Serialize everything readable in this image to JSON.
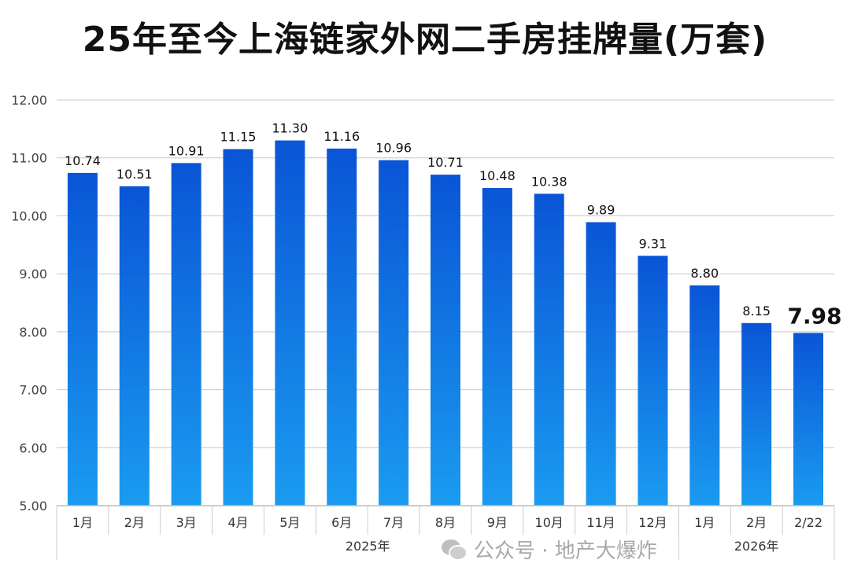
{
  "chart_data": {
    "type": "bar",
    "title": "25年至今上海链家外网二手房挂牌量(万套)",
    "categories": [
      "1月",
      "2月",
      "3月",
      "4月",
      "5月",
      "6月",
      "7月",
      "8月",
      "9月",
      "10月",
      "11月",
      "12月",
      "1月",
      "2月",
      "2/22"
    ],
    "groups": [
      {
        "label": "2025年",
        "count": 12
      },
      {
        "label": "2026年",
        "count": 3
      }
    ],
    "values": [
      10.74,
      10.51,
      10.91,
      11.15,
      11.3,
      11.16,
      10.96,
      10.71,
      10.48,
      10.38,
      9.89,
      9.31,
      8.8,
      8.15,
      7.98
    ],
    "data_labels": [
      "10.74",
      "10.51",
      "10.91",
      "11.15",
      "11.30",
      "11.16",
      "10.96",
      "10.71",
      "10.48",
      "10.38",
      "9.89",
      "9.31",
      "8.80",
      "8.15",
      "7.98"
    ],
    "highlight_index": 14,
    "ylim": [
      5,
      12
    ],
    "yticks": [
      "5.00",
      "6.00",
      "7.00",
      "8.00",
      "9.00",
      "10.00",
      "11.00",
      "12.00"
    ],
    "grid": true,
    "xlabel": "",
    "ylabel": "",
    "colors": {
      "bar_top": "#0a55d6",
      "bar_bottom": "#1a9bf0",
      "grid": "#c8c8c8"
    }
  },
  "watermark": {
    "text": "公众号 · 地产大爆炸",
    "icon": "wechat-icon"
  }
}
